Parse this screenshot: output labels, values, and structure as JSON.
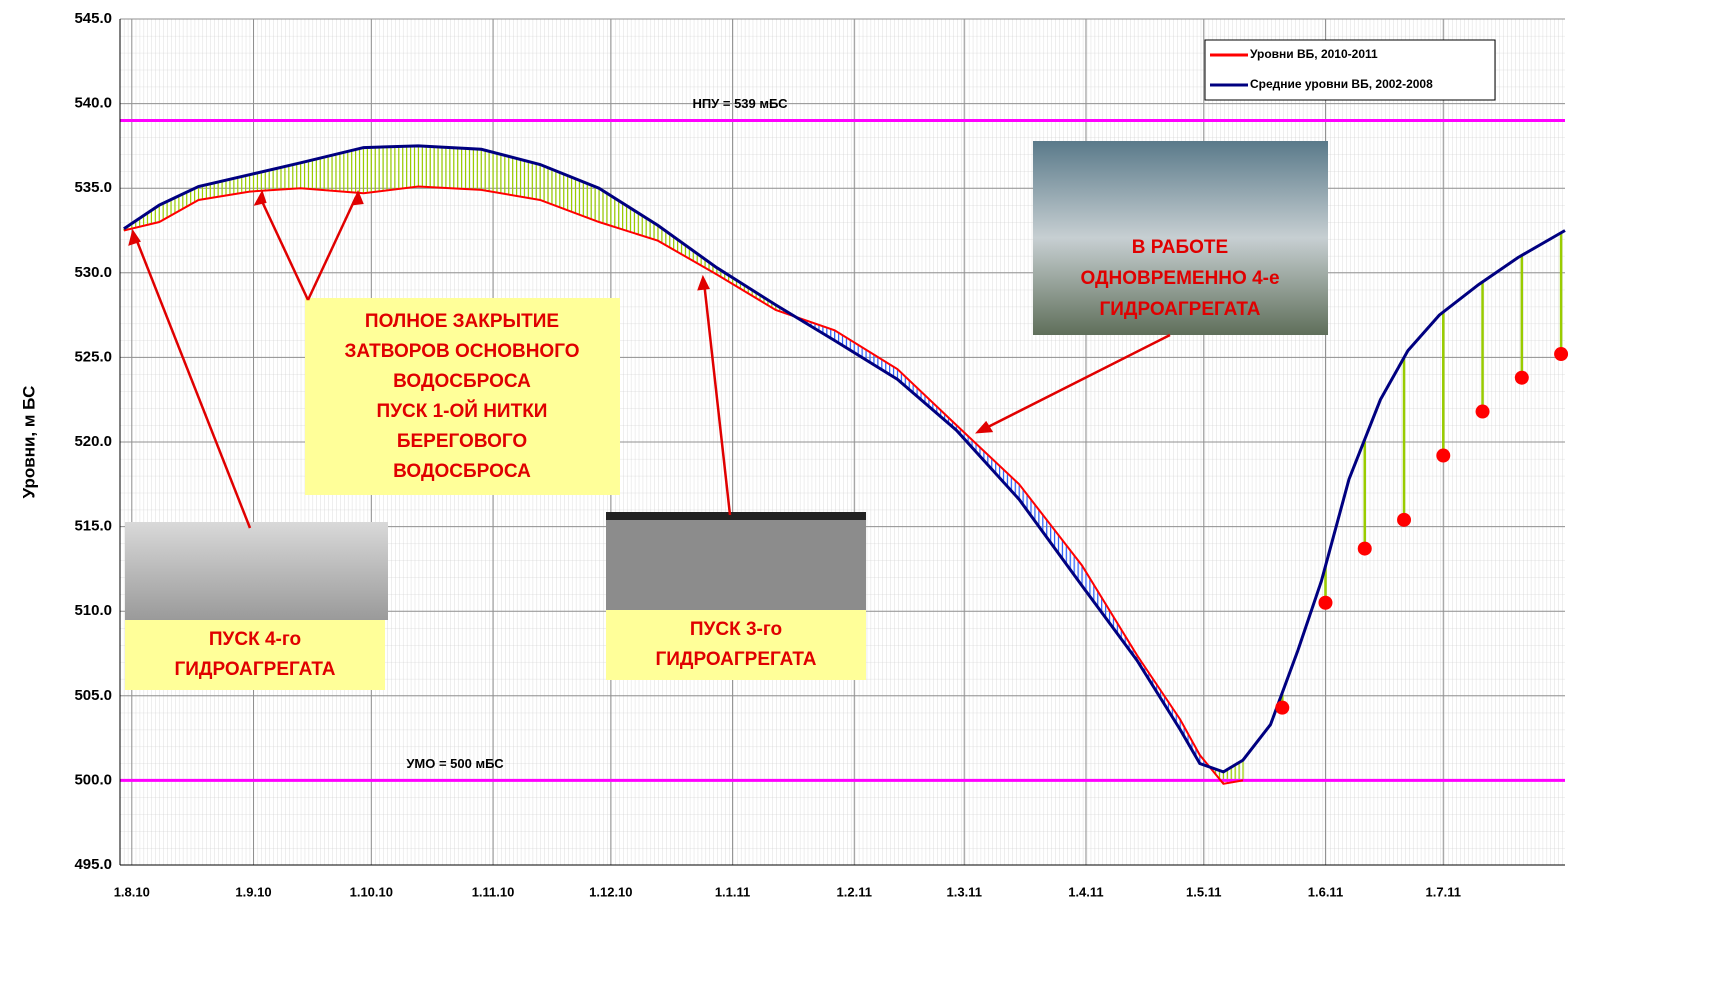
{
  "chart_data": {
    "type": "line",
    "ylabel": "Уровни, м БС",
    "xlim": [
      -3,
      365
    ],
    "xticks": [
      {
        "value": 0,
        "label": "1.8.10"
      },
      {
        "value": 31,
        "label": "1.9.10"
      },
      {
        "value": 61,
        "label": "1.10.10"
      },
      {
        "value": 92,
        "label": "1.11.10"
      },
      {
        "value": 122,
        "label": "1.12.10"
      },
      {
        "value": 153,
        "label": "1.1.11"
      },
      {
        "value": 184,
        "label": "1.2.11"
      },
      {
        "value": 212,
        "label": "1.3.11"
      },
      {
        "value": 243,
        "label": "1.4.11"
      },
      {
        "value": 273,
        "label": "1.5.11"
      },
      {
        "value": 304,
        "label": "1.6.11"
      },
      {
        "value": 334,
        "label": "1.7.11"
      }
    ],
    "ylim": [
      495,
      545
    ],
    "yticks": [
      {
        "value": 495,
        "label": "495.0"
      },
      {
        "value": 500,
        "label": "500.0"
      },
      {
        "value": 505,
        "label": "505.0"
      },
      {
        "value": 510,
        "label": "510.0"
      },
      {
        "value": 515,
        "label": "515.0"
      },
      {
        "value": 520,
        "label": "520.0"
      },
      {
        "value": 525,
        "label": "525.0"
      },
      {
        "value": 530,
        "label": "530.0"
      },
      {
        "value": 535,
        "label": "535.0"
      },
      {
        "value": 540,
        "label": "540.0"
      },
      {
        "value": 545,
        "label": "545.0"
      }
    ],
    "grid": true,
    "legend": "upper right",
    "x": [
      -2,
      7,
      17,
      30,
      43,
      59,
      73,
      89,
      104,
      119,
      134,
      149,
      164,
      179,
      195,
      210,
      226,
      242,
      256,
      267,
      272,
      278,
      283,
      290,
      297,
      303,
      310,
      318,
      325,
      333,
      343,
      353,
      365
    ],
    "series": [
      {
        "name": "Уровни ВБ, 2010-2011",
        "color": "#ff0000",
        "values": [
          532.5,
          533.0,
          534.3,
          534.8,
          535.0,
          534.7,
          535.1,
          534.9,
          534.3,
          533.0,
          531.9,
          529.9,
          527.8,
          526.6,
          524.3,
          521.0,
          517.5,
          512.7,
          507.4,
          503.6,
          501.5,
          499.8,
          500.0,
          null,
          null,
          null,
          null,
          null,
          null,
          null,
          null,
          null,
          null
        ]
      },
      {
        "name": "Средние уровни ВБ, 2002-2008",
        "color": "#000080",
        "values": [
          532.6,
          534.0,
          535.1,
          535.8,
          536.5,
          537.4,
          537.5,
          537.3,
          536.4,
          535.0,
          532.8,
          530.3,
          528.1,
          526.0,
          523.7,
          520.7,
          516.6,
          511.5,
          507.1,
          503.0,
          501.0,
          500.5,
          501.2,
          503.3,
          507.7,
          511.8,
          517.8,
          522.5,
          525.4,
          527.5,
          529.3,
          530.9,
          532.5
        ]
      },
      {
        "color": "#ff0000",
        "marker": "circle",
        "x": [
          293,
          304,
          314,
          324,
          334,
          344,
          354,
          364
        ],
        "values": [
          504.3,
          510.5,
          513.7,
          515.4,
          519.2,
          521.8,
          523.8,
          525.2
        ]
      }
    ],
    "hlines": [
      {
        "value": 539,
        "label": "НПУ = 539 мБС",
        "color": "#ff00ff"
      },
      {
        "value": 500,
        "label": "УМО = 500 мБС",
        "color": "#ff00ff"
      }
    ],
    "annotations": [
      {
        "lines": [
          "ПОЛНОЕ ЗАКРЫТИЕ",
          "ЗАТВОРОВ ОСНОВНОГО",
          "ВОДОСБРОСА",
          "ПУСК 1-ОЙ НИТКИ",
          "БЕРЕГОВОГО",
          "ВОДОСБРОСА"
        ]
      },
      {
        "lines": [
          "ПУСК 4-го",
          "ГИДРОАГРЕГАТА"
        ]
      },
      {
        "lines": [
          "ПУСК 3-го",
          "ГИДРОАГРЕГАТА"
        ]
      },
      {
        "lines": [
          "В РАБОТЕ",
          "ОДНОВРЕМЕННО 4-е",
          "ГИДРОАГРЕГАТА"
        ]
      }
    ]
  }
}
